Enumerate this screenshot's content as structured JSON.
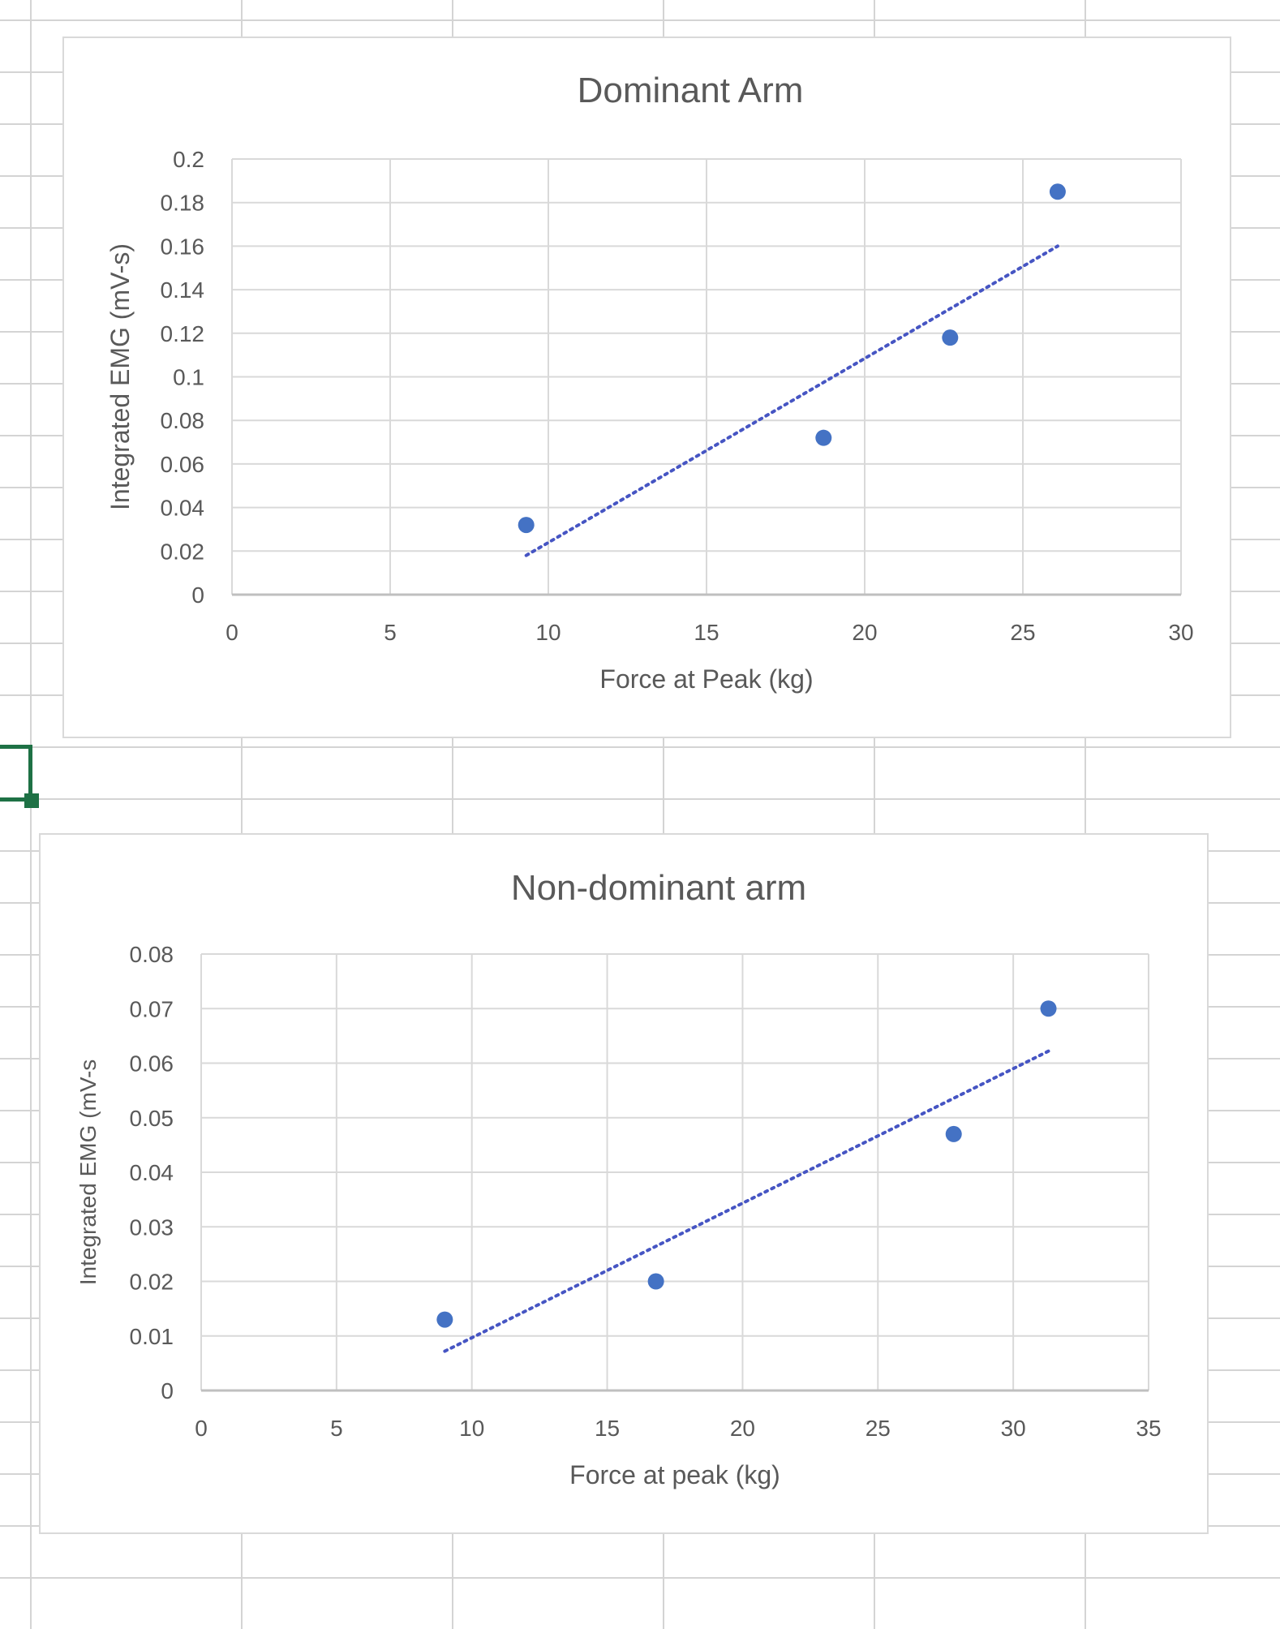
{
  "colors": {
    "marker": "#4472c4",
    "trendline": "#4655c3",
    "gridline": "#d9d9d9",
    "axis_text": "#595959",
    "cell_cursor": "#1e7145"
  },
  "chart_data": [
    {
      "type": "scatter",
      "title": "Dominant Arm",
      "xlabel": "Force at Peak (kg)",
      "ylabel": "Integrated EMG (mV-s)",
      "xlim": [
        0,
        30
      ],
      "ylim": [
        0,
        0.2
      ],
      "x_ticks": [
        "0",
        "5",
        "10",
        "15",
        "20",
        "25",
        "30"
      ],
      "y_ticks": [
        "0",
        "0.02",
        "0.04",
        "0.06",
        "0.08",
        "0.1",
        "0.12",
        "0.14",
        "0.16",
        "0.18",
        "0.2"
      ],
      "grid": true,
      "legend": "none",
      "points": [
        {
          "x": 9.3,
          "y": 0.032
        },
        {
          "x": 18.7,
          "y": 0.072
        },
        {
          "x": 22.7,
          "y": 0.118
        },
        {
          "x": 26.1,
          "y": 0.185
        }
      ],
      "trendline": {
        "type": "linear",
        "style": "dotted",
        "from": {
          "x": 9.3,
          "y": 0.018
        },
        "to": {
          "x": 26.1,
          "y": 0.16
        }
      }
    },
    {
      "type": "scatter",
      "title": "Non-dominant arm",
      "xlabel": "Force at peak (kg)",
      "ylabel": "Integrated EMG (mV-s",
      "xlim": [
        0,
        35
      ],
      "ylim": [
        0,
        0.08
      ],
      "x_ticks": [
        "0",
        "5",
        "10",
        "15",
        "20",
        "25",
        "30",
        "35"
      ],
      "y_ticks": [
        "0",
        "0.01",
        "0.02",
        "0.03",
        "0.04",
        "0.05",
        "0.06",
        "0.07",
        "0.08"
      ],
      "grid": true,
      "legend": "none",
      "points": [
        {
          "x": 9.0,
          "y": 0.013
        },
        {
          "x": 16.8,
          "y": 0.02
        },
        {
          "x": 27.8,
          "y": 0.047
        },
        {
          "x": 31.3,
          "y": 0.07
        }
      ],
      "trendline": {
        "type": "linear",
        "style": "dotted",
        "from": {
          "x": 9.0,
          "y": 0.0072
        },
        "to": {
          "x": 31.3,
          "y": 0.0622
        }
      }
    }
  ]
}
